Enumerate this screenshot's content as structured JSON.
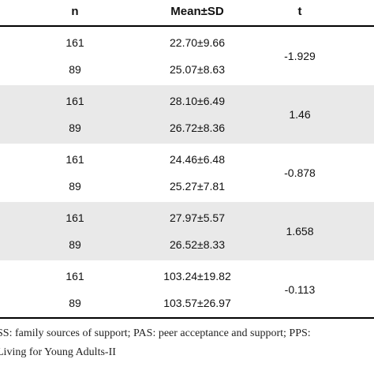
{
  "table": {
    "headers": {
      "n": "n",
      "mean_sd": "Mean±SD",
      "t": "t"
    },
    "groups": [
      {
        "rows": [
          {
            "n": "161",
            "mean_sd": "22.70±9.66"
          },
          {
            "n": "89",
            "mean_sd": "25.07±8.63"
          }
        ],
        "t": "-1.929"
      },
      {
        "rows": [
          {
            "n": "161",
            "mean_sd": "28.10±6.49"
          },
          {
            "n": "89",
            "mean_sd": "26.72±8.36"
          }
        ],
        "t": "1.46"
      },
      {
        "rows": [
          {
            "n": "161",
            "mean_sd": "24.46±6.48"
          },
          {
            "n": "89",
            "mean_sd": "25.27±7.81"
          }
        ],
        "t": "-0.878"
      },
      {
        "rows": [
          {
            "n": "161",
            "mean_sd": "27.97±5.57"
          },
          {
            "n": "89",
            "mean_sd": "26.52±8.33"
          }
        ],
        "t": "1.658"
      },
      {
        "rows": [
          {
            "n": "161",
            "mean_sd": "103.24±19.82"
          },
          {
            "n": "89",
            "mean_sd": "103.57±26.97"
          }
        ],
        "t": "-0.113"
      }
    ]
  },
  "footnote": {
    "line1": "SS: family sources of support; PAS: peer acceptance and support; PPS:",
    "line2": "Living for Young Adults-II"
  },
  "colors": {
    "shaded_row": "#e9e9e9",
    "rule": "#000000"
  }
}
